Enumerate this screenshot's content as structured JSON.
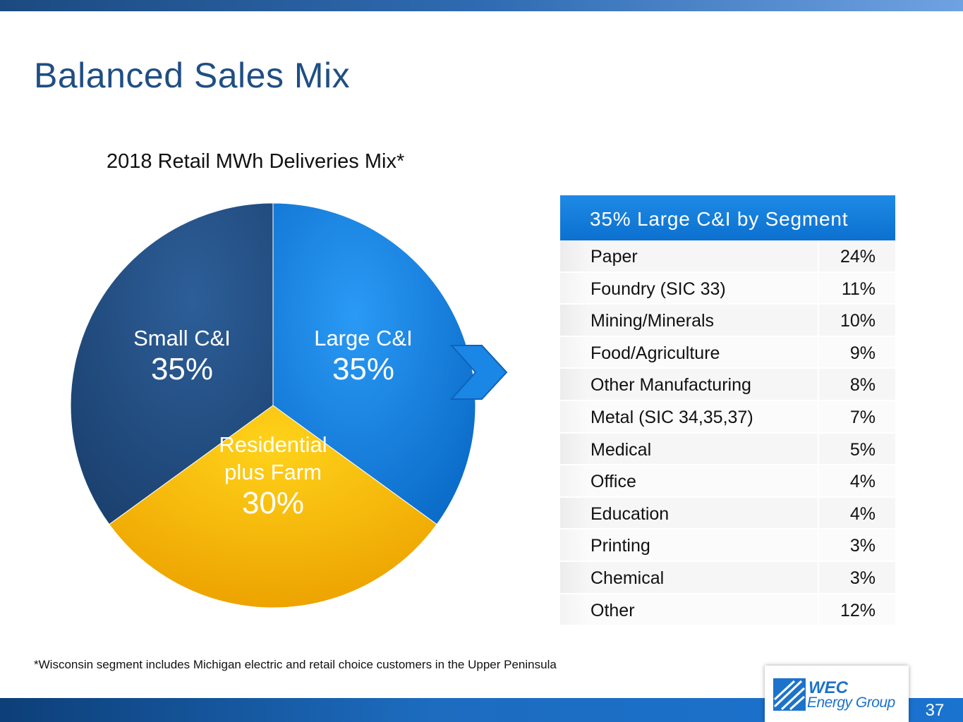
{
  "slide": {
    "title": "Balanced Sales Mix",
    "footnote": "*Wisconsin segment includes Michigan electric and retail choice customers in the Upper Peninsula",
    "page_number": "37",
    "logo": {
      "line1": "WEC",
      "line2": "Energy Group"
    }
  },
  "chart_data": {
    "type": "pie",
    "title": "2018 Retail MWh Deliveries Mix*",
    "slices": [
      {
        "label": "Large C&I",
        "value": 35,
        "value_label": "35%",
        "color": "#1384e6"
      },
      {
        "label": "Residential plus Farm",
        "label_lines": [
          "Residential",
          "plus Farm"
        ],
        "value": 30,
        "value_label": "30%",
        "color": "#fdbd10"
      },
      {
        "label": "Small C&I",
        "value": 35,
        "value_label": "35%",
        "color": "#234f86"
      }
    ]
  },
  "segment_table": {
    "header": "35% Large C&I by Segment",
    "rows": [
      {
        "name": "Paper",
        "pct": "24%"
      },
      {
        "name": "Foundry (SIC 33)",
        "pct": "11%"
      },
      {
        "name": "Mining/Minerals",
        "pct": "10%"
      },
      {
        "name": "Food/Agriculture",
        "pct": "9%"
      },
      {
        "name": "Other Manufacturing",
        "pct": "8%"
      },
      {
        "name": "Metal (SIC 34,35,37)",
        "pct": "7%"
      },
      {
        "name": "Medical",
        "pct": "5%"
      },
      {
        "name": "Office",
        "pct": "4%"
      },
      {
        "name": "Education",
        "pct": "4%"
      },
      {
        "name": "Printing",
        "pct": "3%"
      },
      {
        "name": "Chemical",
        "pct": "3%"
      },
      {
        "name": "Other",
        "pct": "12%"
      }
    ]
  }
}
